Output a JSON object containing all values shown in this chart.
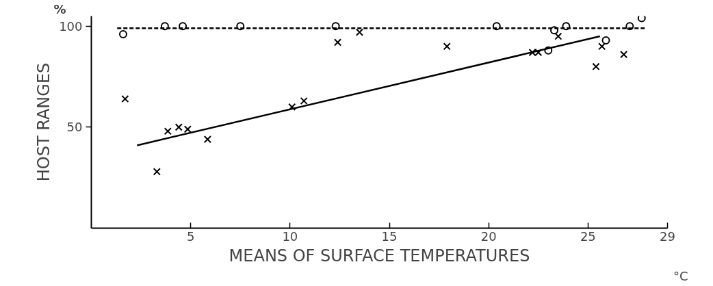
{
  "chart_data": {
    "type": "scatter",
    "xlabel": "MEANS OF SURFACE TEMPERATURES",
    "ylabel": "HOST RANGES",
    "annotations": [
      "%",
      "°C"
    ],
    "xlim": [
      0,
      29
    ],
    "ylim": [
      0,
      105
    ],
    "xticks": [
      5,
      10,
      15,
      20,
      25,
      29
    ],
    "yticks": [
      50,
      100
    ],
    "grid": false,
    "series": [
      {
        "color": "#000000",
        "marker": "circle",
        "x": [
          1.6,
          3.7,
          4.6,
          7.5,
          12.3,
          20.4,
          23.3,
          23.9,
          25.9,
          23.0,
          27.1,
          27.7
        ],
        "values": [
          96,
          100,
          100,
          100,
          100,
          100,
          98,
          100,
          93,
          88,
          100,
          104
        ]
      },
      {
        "color": "#000000",
        "marker": "cross",
        "x": [
          1.7,
          3.85,
          4.4,
          4.85,
          5.85,
          3.3,
          10.1,
          10.7,
          12.4,
          13.5,
          17.9,
          22.2,
          22.5,
          23.5,
          25.7,
          25.4,
          26.8
        ],
        "values": [
          64,
          48,
          50,
          49,
          44,
          28,
          60,
          63,
          92,
          97,
          90,
          87,
          87,
          95,
          90,
          80,
          86
        ]
      },
      {
        "type": "line",
        "color": "#000000",
        "line_style": "solid",
        "x": [
          2.3,
          25.6
        ],
        "values": [
          41,
          95
        ]
      },
      {
        "type": "line",
        "color": "#000000",
        "line_style": "dashed",
        "x": [
          1.3,
          27.9
        ],
        "values": [
          99,
          99
        ]
      }
    ]
  }
}
